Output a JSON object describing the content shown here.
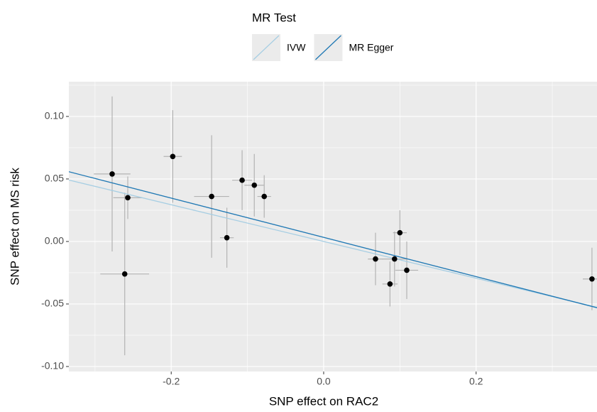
{
  "chart_data": {
    "type": "scatter",
    "legend_title": "MR Test",
    "x_label": "SNP effect on RAC2",
    "y_label": "SNP effect on MS risk",
    "x": [
      -0.2775,
      -0.257,
      -0.261,
      -0.198,
      -0.147,
      -0.127,
      -0.107,
      -0.091,
      -0.078,
      0.068,
      0.087,
      0.093,
      0.1,
      0.109,
      0.352
    ],
    "y": [
      0.054,
      0.035,
      -0.026,
      0.068,
      0.036,
      0.003,
      0.049,
      0.045,
      0.036,
      -0.014,
      -0.034,
      -0.014,
      0.007,
      -0.023,
      -0.03
    ],
    "x_err": [
      0.024,
      0.019,
      0.032,
      0.012,
      0.023,
      0.009,
      0.013,
      0.013,
      0.009,
      0.01,
      0.01,
      0.016,
      0.009,
      0.015,
      0.012
    ],
    "y_err": [
      0.062,
      0.017,
      0.065,
      0.037,
      0.049,
      0.024,
      0.024,
      0.025,
      0.017,
      0.021,
      0.018,
      0.022,
      0.018,
      0.023,
      0.025
    ],
    "point_color": "#000000",
    "error_color": "#b3b3b3",
    "lines": [
      {
        "name": "IVW",
        "color": "#a6cee3",
        "slope": -0.147,
        "intercept": 0.0
      },
      {
        "name": "MR Egger",
        "color": "#1f78b4",
        "slope": -0.157,
        "intercept": 0.0033
      }
    ],
    "xlim": [
      -0.3343,
      0.3586
    ],
    "ylim": [
      -0.104,
      0.1278
    ],
    "xticks": [
      -0.2,
      {
        "value": 0.0,
        "label": "0.0"
      },
      0.2
    ],
    "yticks": [
      {
        "value": -0.1,
        "label": "-0.10"
      },
      {
        "value": -0.05,
        "label": "-0.05"
      },
      {
        "value": 0.0,
        "label": "0.00"
      },
      {
        "value": 0.05,
        "label": "0.05"
      },
      {
        "value": 0.1,
        "label": "0.10"
      }
    ],
    "grid": true,
    "minor_grid": true,
    "legend_position": "top"
  }
}
